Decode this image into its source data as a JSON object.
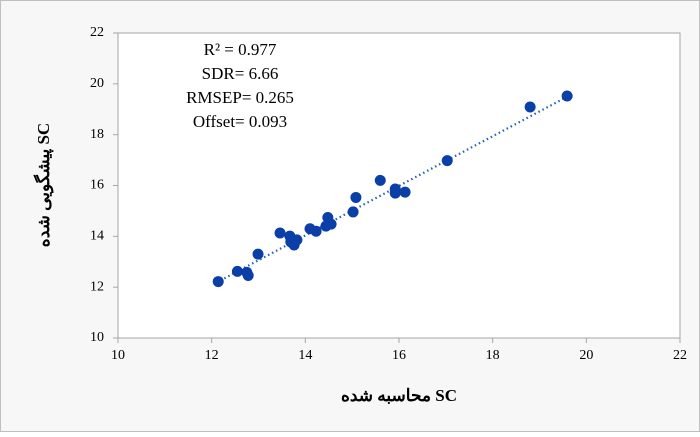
{
  "chart_data": {
    "type": "scatter",
    "x_label": "SC محاسبه شده",
    "y_label": "SC پیشگویی شده",
    "annotations": [
      "R² = 0.977",
      "SDR= 6.66",
      "RMSEP=  0.265",
      "Offset= 0.093"
    ],
    "series": [
      {
        "color": "#0b3fa8",
        "x": [
          12.14,
          12.55,
          12.75,
          12.78,
          12.99,
          13.46,
          13.67,
          13.69,
          13.76,
          13.82,
          14.1,
          14.23,
          14.48,
          14.44,
          14.55,
          15.02,
          15.08,
          15.6,
          15.92,
          15.92,
          16.13,
          17.03,
          18.8,
          19.59
        ],
        "values": [
          12.22,
          12.62,
          12.58,
          12.46,
          13.3,
          14.13,
          14.01,
          13.78,
          13.66,
          13.86,
          14.3,
          14.2,
          14.74,
          14.4,
          14.48,
          14.96,
          15.53,
          16.2,
          15.86,
          15.7,
          15.74,
          16.98,
          19.09,
          19.52
        ]
      }
    ],
    "trendline": {
      "color": "#1f5fbf",
      "x": [
        12.1,
        19.6
      ],
      "values": [
        12.18,
        19.5
      ]
    },
    "xlim": [
      10,
      22
    ],
    "xticks": [
      10,
      12,
      14,
      16,
      18,
      20,
      22
    ],
    "ylim": [
      10,
      22
    ],
    "yticks": [
      10,
      12,
      14,
      16,
      18,
      20,
      22
    ],
    "grid": false
  }
}
